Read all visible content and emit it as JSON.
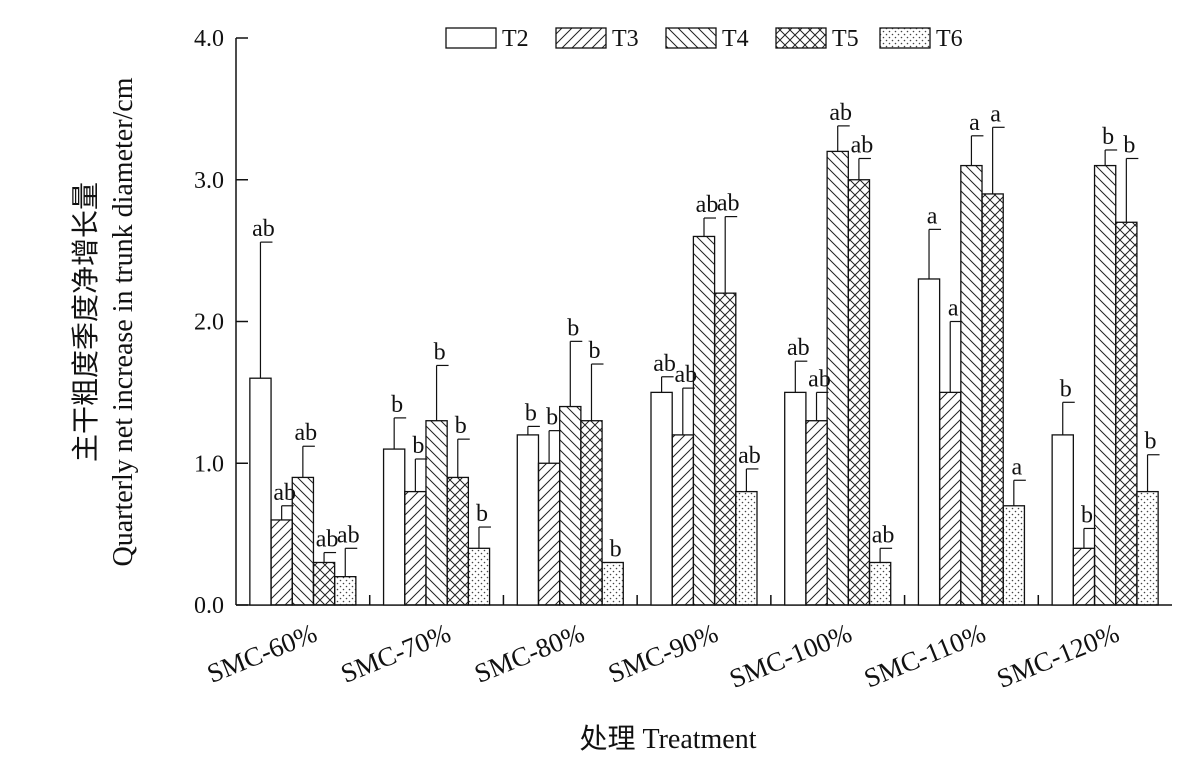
{
  "chart_data": {
    "type": "bar",
    "xlabel": "处理  Treatment",
    "ylabel_cn": "主干粗度季度净增长量",
    "ylabel_en": "Quarterly net increase in trunk diameter/cm",
    "ylim": [
      0,
      4
    ],
    "yticks": [
      "0.0",
      "1.0",
      "2.0",
      "3.0",
      "4.0"
    ],
    "ytick_values": [
      0,
      1,
      2,
      3,
      4
    ],
    "legend_position": "top",
    "categories": [
      "SMC-60%",
      "SMC-70%",
      "SMC-80%",
      "SMC-90%",
      "SMC-100%",
      "SMC-110%",
      "SMC-120%"
    ],
    "series": [
      {
        "name": "T2",
        "pattern": "solid",
        "values": [
          1.6,
          1.1,
          1.2,
          1.5,
          1.5,
          2.3,
          1.2
        ],
        "errors": [
          0.96,
          0.22,
          0.06,
          0.11,
          0.22,
          0.35,
          0.23
        ],
        "labels": [
          "ab",
          "b",
          "b",
          "ab",
          "ab",
          "a",
          "b"
        ]
      },
      {
        "name": "T3",
        "pattern": "diag-forward",
        "values": [
          0.6,
          0.8,
          1.0,
          1.2,
          1.3,
          1.5,
          0.4
        ],
        "errors": [
          0.1,
          0.23,
          0.23,
          0.33,
          0.2,
          0.5,
          0.14
        ],
        "labels": [
          "ab",
          "b",
          "b",
          "ab",
          "ab",
          "a",
          "b"
        ]
      },
      {
        "name": "T4",
        "pattern": "diag-back",
        "values": [
          0.9,
          1.3,
          1.4,
          2.6,
          3.2,
          3.1,
          3.1
        ],
        "errors": [
          0.22,
          0.39,
          0.46,
          0.13,
          0.18,
          0.21,
          0.11
        ],
        "labels": [
          "ab",
          "b",
          "b",
          "ab",
          "ab",
          "a",
          "b"
        ]
      },
      {
        "name": "T5",
        "pattern": "crosshatch",
        "values": [
          0.3,
          0.9,
          1.3,
          2.2,
          3.0,
          2.9,
          2.7
        ],
        "errors": [
          0.07,
          0.27,
          0.4,
          0.54,
          0.15,
          0.47,
          0.45
        ],
        "labels": [
          "ab",
          "b",
          "b",
          "ab",
          "ab",
          "a",
          "b"
        ]
      },
      {
        "name": "T6",
        "pattern": "dots",
        "values": [
          0.2,
          0.4,
          0.3,
          0.8,
          0.3,
          0.7,
          0.8
        ],
        "errors": [
          0.2,
          0.15,
          0.0,
          0.16,
          0.1,
          0.18,
          0.26
        ],
        "labels": [
          "ab",
          "b",
          "b",
          "ab",
          "ab",
          "a",
          "b"
        ]
      }
    ]
  }
}
